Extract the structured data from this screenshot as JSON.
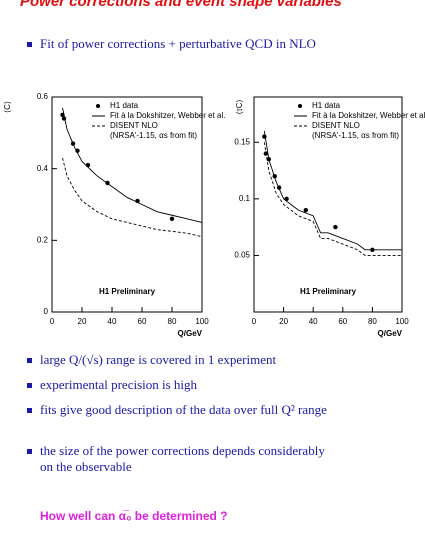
{
  "header": {
    "title": "Power corrections and event shape variables"
  },
  "intro": "Fit of power corrections + perturbative QCD in NLO",
  "chart_data": [
    {
      "type": "line",
      "ylabel": "⟨C⟩",
      "xlabel": "Q/GeV",
      "annotation": "H1 Preliminary",
      "legend_note": "(NRSA'-1.15, αs from fit)",
      "xlim": [
        0,
        100
      ],
      "xticks": [
        0,
        20,
        40,
        60,
        80,
        100
      ],
      "ylim": [
        0,
        0.6
      ],
      "yticks": [
        0,
        0.2,
        0.4,
        0.6
      ],
      "series": [
        {
          "name": "H1 data",
          "style": "points",
          "color": "#000000",
          "x": [
            7,
            8,
            14,
            17,
            24,
            37,
            57,
            80
          ],
          "values": [
            0.55,
            0.54,
            0.47,
            0.45,
            0.41,
            0.36,
            0.31,
            0.26
          ]
        },
        {
          "name": "Fit à la Dokshitzer, Webber et al.",
          "style": "solid",
          "color": "#000000",
          "x": [
            7,
            10,
            15,
            20,
            30,
            40,
            50,
            60,
            70,
            80,
            90,
            100
          ],
          "values": [
            0.57,
            0.51,
            0.46,
            0.42,
            0.38,
            0.35,
            0.32,
            0.3,
            0.28,
            0.27,
            0.26,
            0.25
          ]
        },
        {
          "name": "DISENT NLO",
          "style": "dashed",
          "color": "#000000",
          "x": [
            7,
            10,
            15,
            20,
            30,
            40,
            50,
            60,
            70,
            80,
            90,
            100
          ],
          "values": [
            0.43,
            0.38,
            0.34,
            0.31,
            0.28,
            0.26,
            0.25,
            0.24,
            0.23,
            0.225,
            0.22,
            0.21
          ]
        }
      ]
    },
    {
      "type": "line",
      "ylabel": "⟨τC⟩",
      "xlabel": "Q/GeV",
      "annotation": "H1 Preliminary",
      "legend_note": "(NRSA'-1.15, αs from fit)",
      "xlim": [
        0,
        100
      ],
      "xticks": [
        0,
        20,
        40,
        60,
        80,
        100
      ],
      "ylim": [
        0,
        0.19
      ],
      "yticks": [
        0.05,
        0.1,
        0.15
      ],
      "series": [
        {
          "name": "H1 data",
          "style": "points",
          "color": "#000000",
          "x": [
            7,
            8,
            10,
            14,
            17,
            22,
            35,
            55,
            80
          ],
          "values": [
            0.155,
            0.14,
            0.135,
            0.12,
            0.11,
            0.1,
            0.09,
            0.075,
            0.055
          ]
        },
        {
          "name": "Fit à la Dokshitzer, Webber et al.",
          "style": "solid",
          "color": "#000000",
          "x": [
            7,
            10,
            15,
            20,
            25,
            30,
            40,
            45,
            50,
            60,
            70,
            75,
            100
          ],
          "values": [
            0.16,
            0.135,
            0.115,
            0.1,
            0.095,
            0.09,
            0.085,
            0.07,
            0.07,
            0.065,
            0.06,
            0.055,
            0.055
          ]
        },
        {
          "name": "DISENT NLO",
          "style": "dashed",
          "color": "#000000",
          "x": [
            7,
            10,
            15,
            20,
            25,
            30,
            40,
            45,
            50,
            60,
            70,
            75,
            100
          ],
          "values": [
            0.15,
            0.125,
            0.105,
            0.095,
            0.09,
            0.085,
            0.08,
            0.065,
            0.065,
            0.06,
            0.055,
            0.05,
            0.05
          ]
        }
      ]
    }
  ],
  "bullets": [
    [
      "large Q/(√s) range is covered in 1 experiment"
    ],
    [
      "experimental precision is high"
    ],
    [
      "fits give good description of the data over full Q² range"
    ],
    [
      "the size of the power corrections depends considerably",
      "on the observable"
    ]
  ],
  "question": "How well can α̅₀ be determined ?"
}
